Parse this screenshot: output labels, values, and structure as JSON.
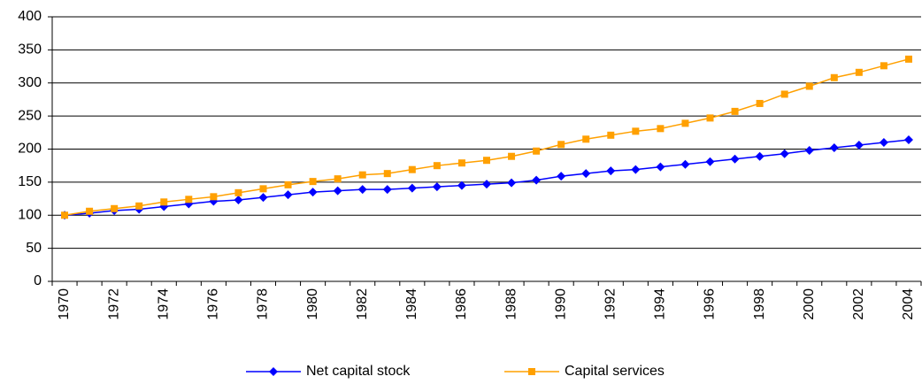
{
  "chart_data": {
    "type": "line",
    "categories": [
      "1970",
      null,
      "1972",
      null,
      "1974",
      null,
      "1976",
      null,
      "1978",
      null,
      "1980",
      null,
      "1982",
      null,
      "1984",
      null,
      "1986",
      null,
      "1988",
      null,
      "1990",
      null,
      "1992",
      null,
      "1994",
      null,
      "1996",
      null,
      "1998",
      null,
      "2000",
      null,
      "2002",
      null,
      "2004"
    ],
    "series": [
      {
        "name": "Net capital stock",
        "color": "#0000ff",
        "marker": "diamond",
        "values": [
          100,
          103,
          107,
          109,
          113,
          117,
          121,
          123,
          127,
          131,
          135,
          137,
          139,
          139,
          141,
          143,
          145,
          147,
          149,
          153,
          159,
          163,
          167,
          169,
          173,
          177,
          181,
          185,
          189,
          193,
          198,
          202,
          206,
          210,
          214
        ]
      },
      {
        "name": "Capital services",
        "color": "#ffa000",
        "marker": "square",
        "values": [
          100,
          106,
          110,
          114,
          120,
          124,
          128,
          134,
          140,
          146,
          151,
          155,
          161,
          163,
          169,
          175,
          179,
          183,
          189,
          197,
          207,
          215,
          221,
          227,
          231,
          239,
          247,
          257,
          269,
          283,
          295,
          308,
          316,
          326,
          336
        ]
      }
    ],
    "ylim": [
      0,
      400
    ],
    "yticks": [
      0,
      50,
      100,
      150,
      200,
      250,
      300,
      350,
      400
    ],
    "grid": true,
    "legend": "bottom"
  }
}
